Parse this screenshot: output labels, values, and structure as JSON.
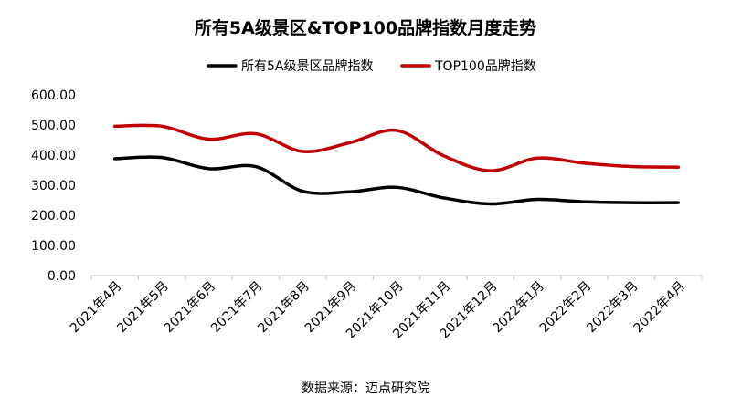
{
  "chart_data": {
    "type": "line",
    "title": "所有5A级景区&TOP100品牌指数月度走势",
    "categories": [
      "2021年4月",
      "2021年5月",
      "2021年6月",
      "2021年7月",
      "2021年8月",
      "2021年9月",
      "2021年10月",
      "2021年11月",
      "2021年12月",
      "2022年1月",
      "2022年2月",
      "2022年3月",
      "2022年4月"
    ],
    "series": [
      {
        "name": "所有5A级景区品牌指数",
        "color": "#000000",
        "values": [
          388,
          392,
          355,
          362,
          280,
          278,
          293,
          258,
          238,
          253,
          245,
          242,
          242
        ]
      },
      {
        "name": "TOP100品牌指数",
        "color": "#c00000",
        "values": [
          496,
          496,
          453,
          471,
          412,
          441,
          482,
          398,
          348,
          390,
          373,
          362,
          360
        ]
      }
    ],
    "ylim": [
      0,
      600
    ],
    "yticks": [
      0,
      100,
      200,
      300,
      400,
      500,
      600
    ],
    "ytick_labels": [
      "0.00",
      "100.00",
      "200.00",
      "300.00",
      "400.00",
      "500.00",
      "600.00"
    ],
    "xlabel": "",
    "ylabel": "",
    "legend_position": "top-center",
    "grid": false,
    "source": "数据来源：迈点研究院"
  }
}
